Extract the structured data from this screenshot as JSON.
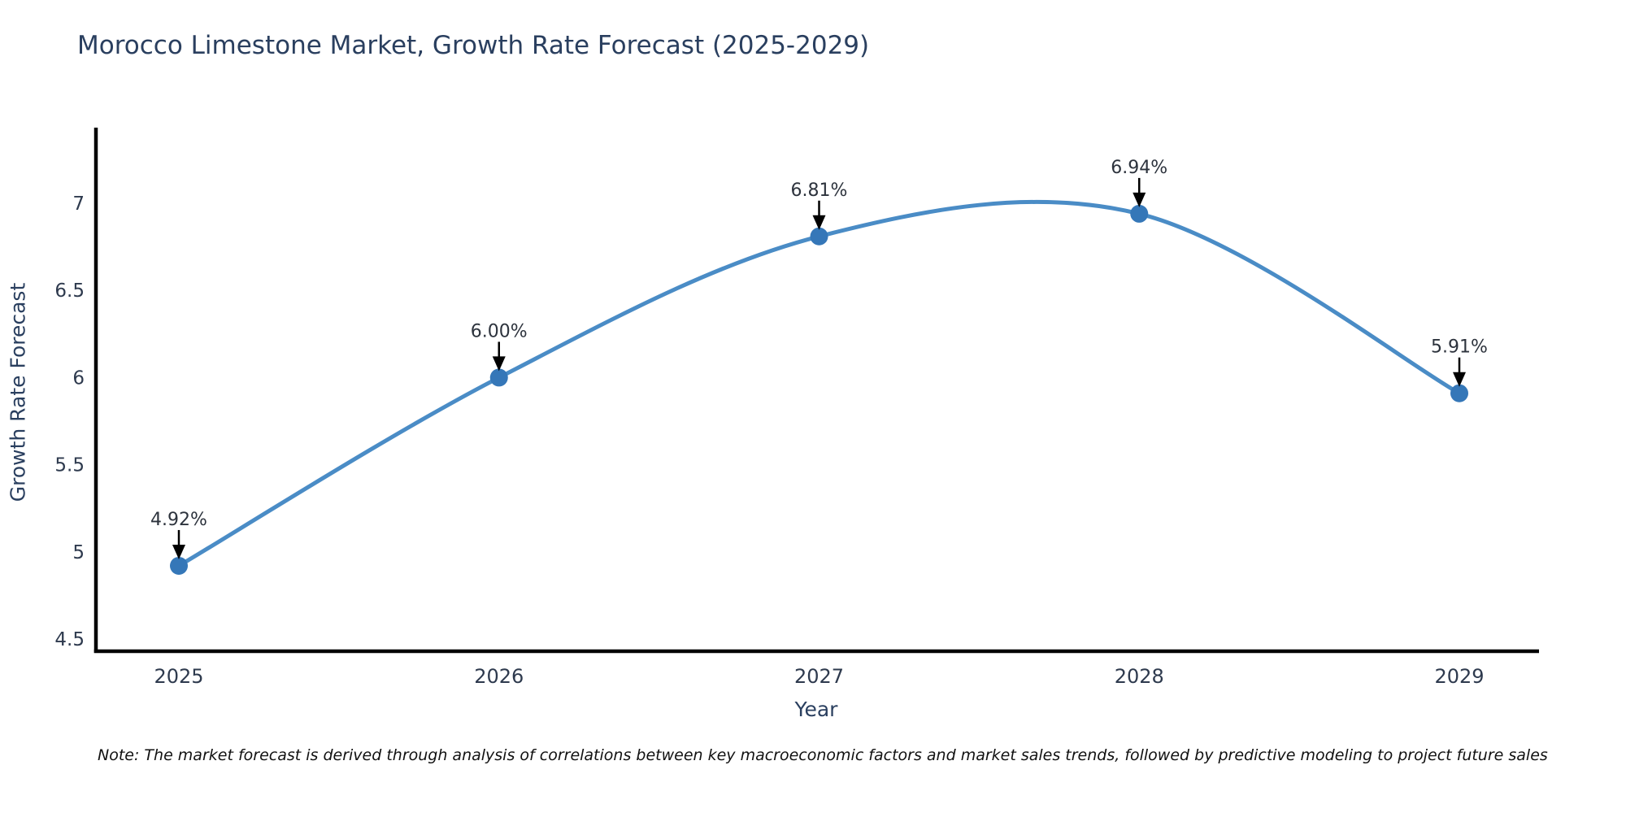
{
  "chart_data": {
    "type": "line",
    "title": "Morocco Limestone Market, Growth Rate Forecast (2025-2029)",
    "x": [
      "2025",
      "2026",
      "2027",
      "2028",
      "2029"
    ],
    "values": [
      4.92,
      6.0,
      6.81,
      6.94,
      5.91
    ],
    "point_labels": [
      "4.92%",
      "6.00%",
      "6.81%",
      "6.94%",
      "5.91%"
    ],
    "xlabel": "Year",
    "ylabel": "Growth Rate Forecast",
    "ytick_labels": [
      "7",
      "6.5",
      "6",
      "5.5",
      "5",
      "4.5"
    ],
    "yticks": [
      7,
      6.5,
      6,
      5.5,
      5,
      4.5
    ],
    "ylim": [
      4.43,
      7.42
    ],
    "grid": false,
    "legend": "none",
    "line_shape": "spline",
    "line_color": "#4a8cc6",
    "marker_color": "#3577b8",
    "annotation_arrow_color": "#000000",
    "axis_color": "#000000",
    "title_color": "#2a3f5f"
  },
  "note": "Note: The market forecast is derived through analysis of correlations between key macroeconomic factors and market sales trends, followed by predictive modeling to project future sales"
}
